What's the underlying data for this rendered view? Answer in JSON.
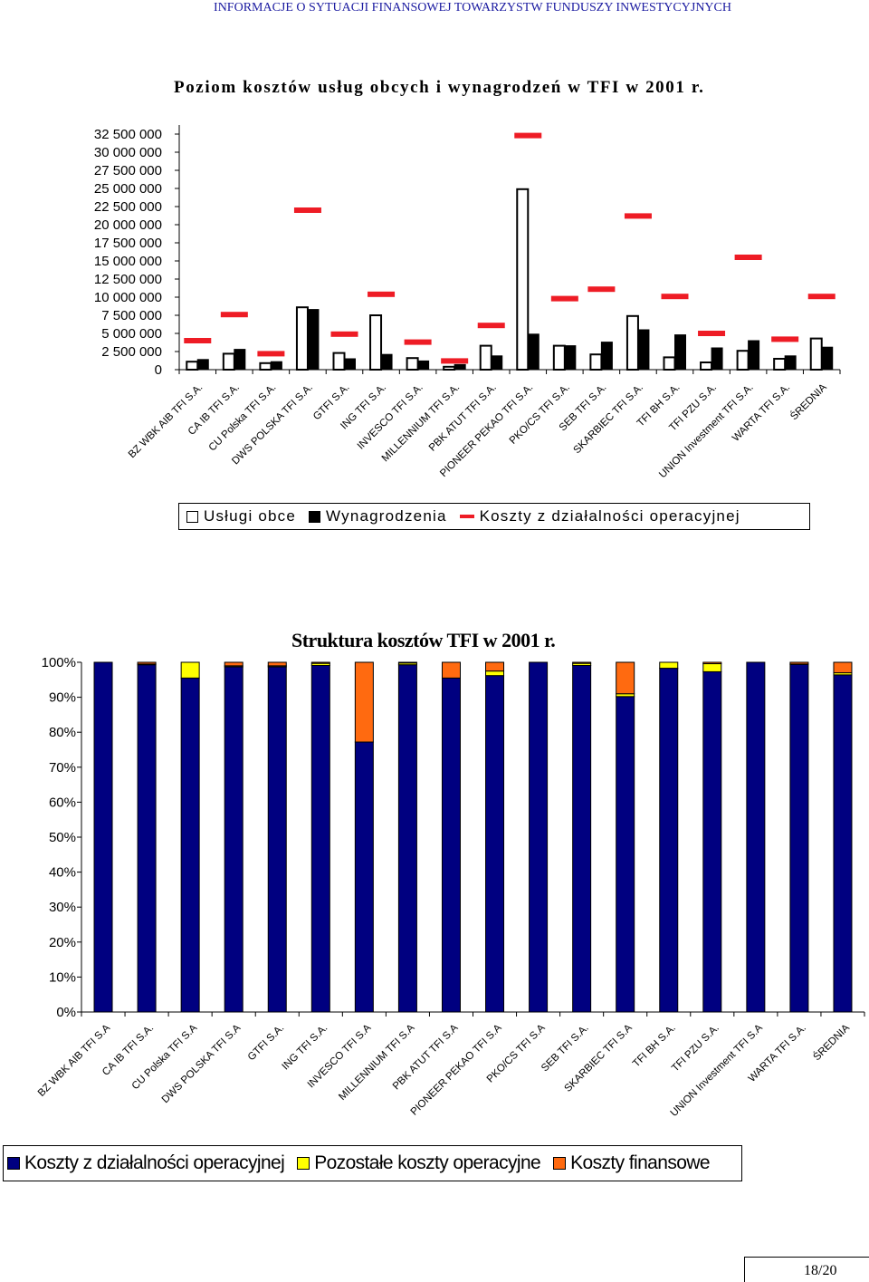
{
  "header": {
    "text": "INFORMACJE O SYTUACJI FINANSOWEJ TOWARZYSTW FUNDUSZY INWESTYCYJNYCH"
  },
  "page": {
    "number": "18/20"
  },
  "colors": {
    "uslugi": "#ffffff",
    "wynagrodzenia": "#000000",
    "koszty_op": "#ee1c25",
    "dzialalnosc": "#000080",
    "pozostale": "#ffff00",
    "finansowe": "#ff6a10"
  },
  "chart_data": [
    {
      "type": "bar",
      "title": "Poziom kosztów usług obcych i wynagrodzeń w TFI w 2001 r.",
      "categories": [
        "BZ WBK AIB TFI S.A.",
        "CA IB TFI S.A.",
        "CU Polska TFI S.A.",
        "DWS POLSKA TFI S.A.",
        "GTFI S.A.",
        "ING TFI S.A.",
        "INVESCO TFI S.A.",
        "MILLENNIUM TFI S.A.",
        "PBK ATUT TFI S.A.",
        "PIONEER PEKAO TFI S.A.",
        "PKO/CS TFI S.A.",
        "SEB TFI S.A.",
        "SKARBIEC TFI S.A.",
        "TFI BH S.A.",
        "TFI PZU S.A.",
        "UNION Investment TFI S.A.",
        "WARTA TFI S.A.",
        "ŚREDNIA"
      ],
      "yticks": [
        "0",
        "2 500 000",
        "5 000 000",
        "7 500 000",
        "10 000 000",
        "12 500 000",
        "15 000 000",
        "17 500 000",
        "20 000 000",
        "22 500 000",
        "25 000 000",
        "27 500 000",
        "30 000 000",
        "32 500 000"
      ],
      "ylim": [
        0,
        32500000
      ],
      "series": [
        {
          "name": "Usługi obce",
          "kind": "bar",
          "values": [
            1100000,
            2200000,
            900000,
            8600000,
            2300000,
            7500000,
            1600000,
            400000,
            3300000,
            24900000,
            3300000,
            2100000,
            7400000,
            1700000,
            1000000,
            2600000,
            1500000,
            4300000
          ]
        },
        {
          "name": "Wynagrodzenia",
          "kind": "bar",
          "values": [
            1400000,
            2800000,
            1100000,
            8300000,
            1500000,
            2100000,
            1200000,
            700000,
            1900000,
            4900000,
            3300000,
            3800000,
            5500000,
            4800000,
            3000000,
            4000000,
            1900000,
            3100000
          ]
        },
        {
          "name": "Koszty z działalności operacyjnej",
          "kind": "marker",
          "values": [
            4000000,
            7600000,
            2200000,
            22000000,
            4900000,
            10400000,
            3800000,
            1200000,
            6100000,
            32300000,
            9800000,
            11100000,
            21200000,
            10100000,
            5000000,
            15500000,
            4200000,
            10100000
          ]
        }
      ]
    },
    {
      "type": "bar",
      "stacked": true,
      "title": "Struktura kosztów TFI w 2001 r.",
      "categories": [
        "BZ WBK AIB TFI S.A",
        "CA IB TFI S.A.",
        "CU Polska TFI S.A",
        "DWS POLSKA TFI S.A",
        "GTFI S.A.",
        "ING TFI S.A.",
        "INVESCO TFI S.A",
        "MILLENNIUM TFI S.A",
        "PBK ATUT TFI S.A",
        "PIONEER PEKAO TFI S.A",
        "PKO/CS TFI S.A",
        "SEB TFI S.A.",
        "SKARBIEC TFI S.A",
        "TFI BH S.A.",
        "TFI PZU S.A.",
        "UNION Investment TFI S.A",
        "WARTA TFI S.A.",
        "ŚREDNIA"
      ],
      "yticks": [
        "0%",
        "10%",
        "20%",
        "30%",
        "40%",
        "50%",
        "60%",
        "70%",
        "80%",
        "90%",
        "100%"
      ],
      "ylim": [
        0,
        100
      ],
      "series": [
        {
          "name": "Koszty z działalności operacyjnej",
          "values": [
            100,
            99.3,
            95.5,
            98.7,
            98.7,
            99.1,
            77.2,
            99.3,
            95.5,
            96.2,
            100,
            99.1,
            90.2,
            98.3,
            97.3,
            100,
            99.4,
            96.4
          ]
        },
        {
          "name": "Pozostałe koszty operacyjne",
          "values": [
            0,
            0.2,
            4.5,
            0.3,
            0.3,
            0.6,
            0,
            0.5,
            0,
            1.3,
            0,
            0.6,
            0.8,
            1.7,
            2.3,
            0,
            0.1,
            0.6
          ]
        },
        {
          "name": "Koszty finansowe",
          "values": [
            0,
            0.5,
            0,
            1.0,
            1.0,
            0.3,
            22.8,
            0.2,
            4.5,
            2.5,
            0,
            0.3,
            9.0,
            0,
            0.4,
            0,
            0.5,
            3.0
          ]
        }
      ]
    }
  ]
}
